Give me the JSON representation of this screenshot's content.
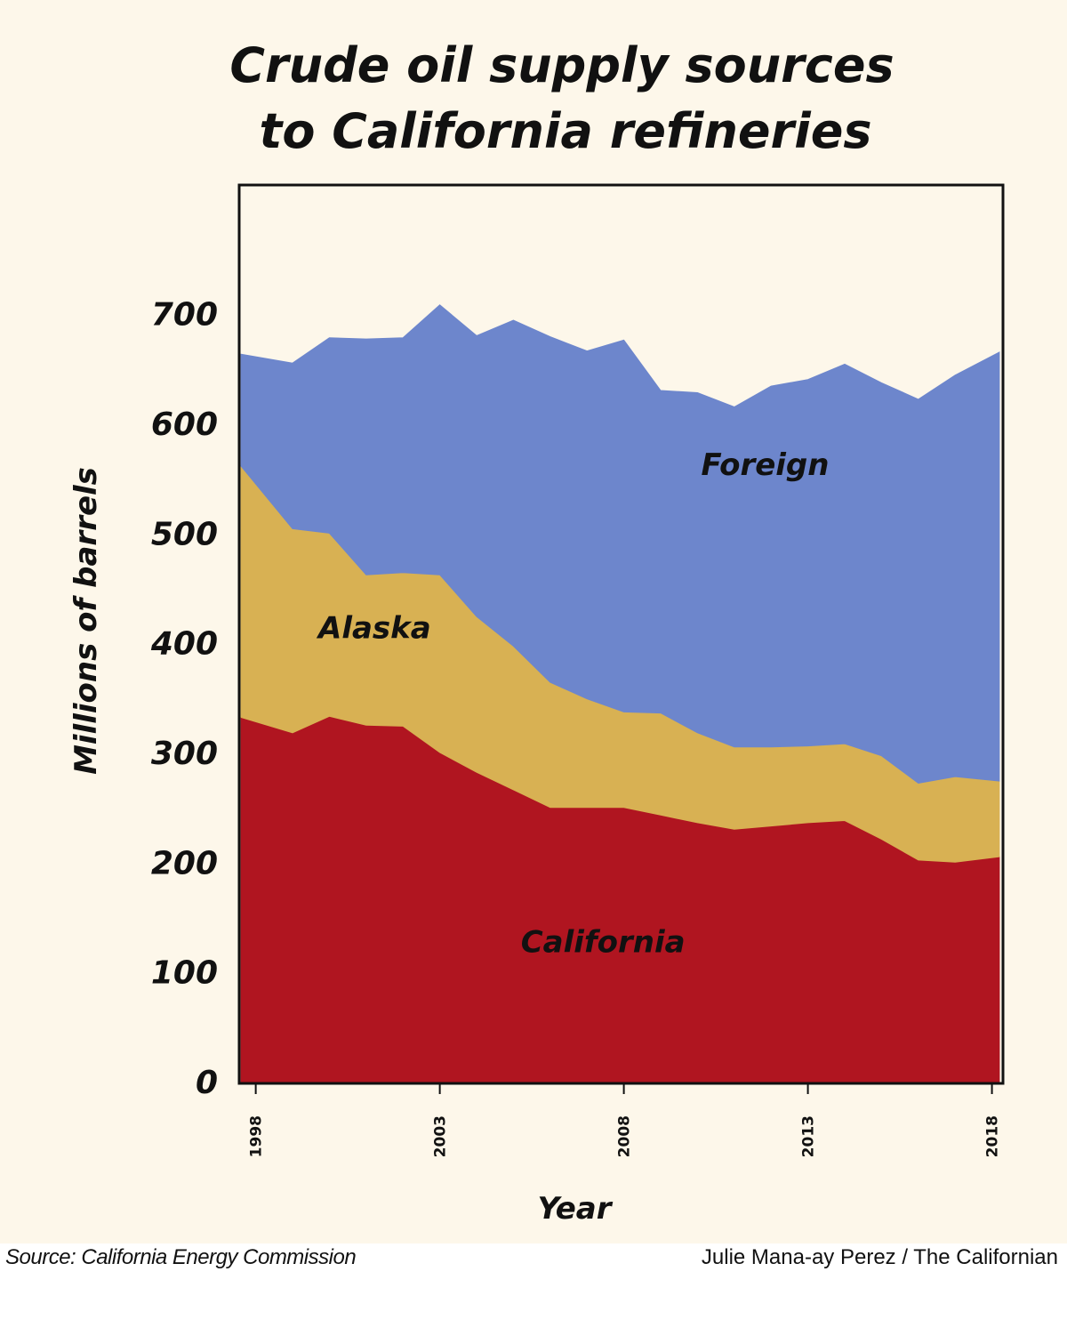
{
  "chart_data": {
    "type": "area",
    "stacked": true,
    "title": [
      "Crude oil supply sources",
      "to California refineries"
    ],
    "xlabel": "Year",
    "ylabel": "Millions of barrels",
    "ylim": [
      0,
      820
    ],
    "yticks": [
      0,
      100,
      200,
      300,
      400,
      500,
      600,
      700
    ],
    "xticks": [
      1998,
      2003,
      2008,
      2013,
      2018
    ],
    "xlim": [
      1997.55,
      2018.3
    ],
    "x": [
      1997.6,
      1999,
      2000,
      2001,
      2002,
      2003,
      2004,
      2005,
      2006,
      2007,
      2008,
      2009,
      2010,
      2011,
      2012,
      2013,
      2014,
      2015,
      2016,
      2017,
      2018.2
    ],
    "series": [
      {
        "name": "California",
        "color": "#b01520",
        "values": [
          332,
          318,
          333,
          325,
          324,
          300,
          282,
          266,
          250,
          250,
          250,
          243,
          236,
          230,
          233,
          236,
          238,
          221,
          202,
          200,
          205
        ],
        "label_pos": [
          2005.2,
          118
        ]
      },
      {
        "name": "Alaska",
        "color": "#d8b153",
        "values": [
          229,
          186,
          167,
          137,
          140,
          162,
          142,
          131,
          114,
          99,
          87,
          93,
          82,
          75,
          72,
          70,
          70,
          76,
          70,
          78,
          69
        ],
        "label_pos": [
          1999.7,
          404
        ]
      },
      {
        "name": "Foreign",
        "color": "#6d86cc",
        "values": [
          102,
          151,
          178,
          215,
          214,
          246,
          256,
          297,
          315,
          317,
          339,
          294,
          310,
          310,
          329,
          334,
          346,
          340,
          350,
          366,
          391
        ],
        "label_pos": [
          2010.1,
          553
        ]
      }
    ]
  },
  "footer": {
    "source": "Source: California Energy Commission",
    "credit": "Julie Mana-ay Perez / The Californian"
  }
}
